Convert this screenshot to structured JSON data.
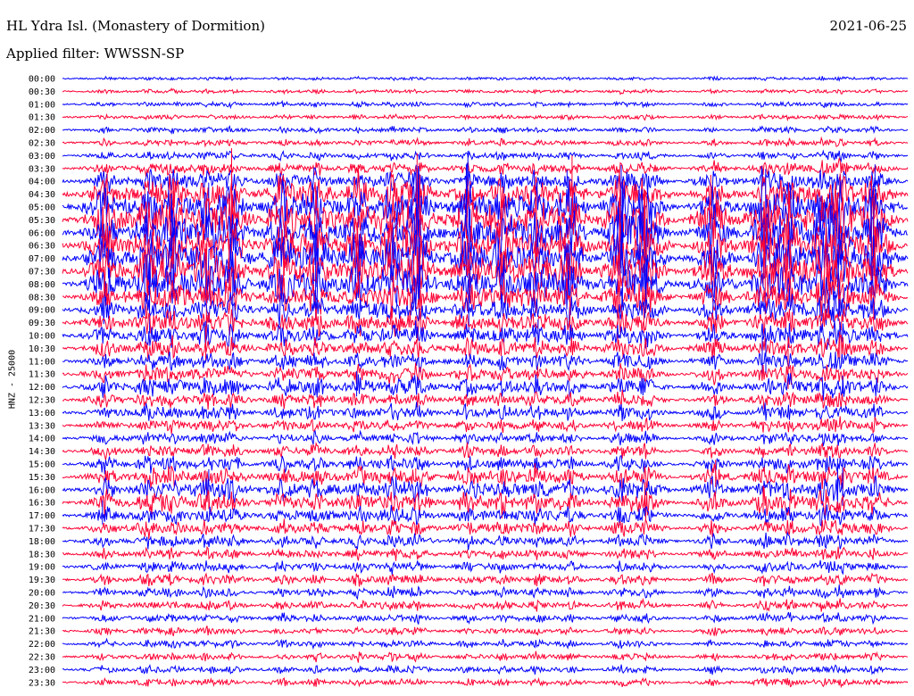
{
  "header": {
    "title": "HL Ydra Isl. (Monastery of Dormition)",
    "filter": "Applied filter: WWSSN-SP",
    "date": "2021-06-25"
  },
  "chart_data": {
    "type": "line",
    "title": "HL Ydra Isl. (Monastery of Dormition)",
    "subtitle": "Applied filter: WWSSN-SP",
    "ylabel": "HNZ - 25000",
    "xlabel": "",
    "categories": [
      "00:00",
      "00:30",
      "01:00",
      "01:30",
      "02:00",
      "02:30",
      "03:00",
      "03:30",
      "04:00",
      "04:30",
      "05:00",
      "05:30",
      "06:00",
      "06:30",
      "07:00",
      "07:30",
      "08:00",
      "08:30",
      "09:00",
      "09:30",
      "10:00",
      "10:30",
      "11:00",
      "11:30",
      "12:00",
      "12:30",
      "13:00",
      "13:30",
      "14:00",
      "14:30",
      "15:00",
      "15:30",
      "16:00",
      "16:30",
      "17:00",
      "17:30",
      "18:00",
      "18:30",
      "19:00",
      "19:30",
      "20:00",
      "20:30",
      "21:00",
      "21:30",
      "22:00",
      "22:30",
      "23:00",
      "23:30"
    ],
    "series_colors": [
      "#0000ff",
      "#ff0033"
    ],
    "row_activity": [
      0.05,
      0.06,
      0.08,
      0.08,
      0.1,
      0.12,
      0.15,
      0.25,
      0.45,
      0.7,
      0.9,
      1.0,
      1.0,
      1.0,
      1.0,
      0.95,
      0.9,
      0.7,
      0.55,
      0.5,
      0.45,
      0.4,
      0.35,
      0.35,
      0.4,
      0.3,
      0.3,
      0.25,
      0.22,
      0.25,
      0.3,
      0.4,
      0.45,
      0.45,
      0.35,
      0.3,
      0.25,
      0.22,
      0.2,
      0.2,
      0.18,
      0.18,
      0.16,
      0.14,
      0.14,
      0.14,
      0.14,
      0.14
    ],
    "grid": false,
    "legend": "none"
  }
}
